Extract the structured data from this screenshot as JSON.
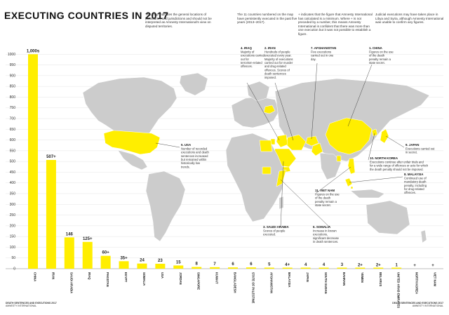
{
  "header": {
    "title": "EXECUTING COUNTRIES IN 2017",
    "note_borders": "This map indicates the general locations of boundaries and jurisdictions and should not be interpreted as Amnesty International's view on disputed territories.",
    "note_countries": "The 11 countries numbered on the map have persistently executed in the past five years (2013–2017).",
    "note_plus": "+ indicates that the figure that Amnesty International has calculated is a minimum. Where + is not preceded by a number, this means Amnesty International is confident that there was more than one execution but it was not possible to establish a figure.",
    "note_libya": "Judicial executions may have taken place in Libya and Syria, although Amnesty International was unable to confirm any figures."
  },
  "footer": {
    "left_line1": "DEATH SENTENCES AND EXECUTIONS 2017",
    "left_line2": "AMNESTY INTERNATIONAL",
    "right_line1": "DEATH SENTENCES AND EXECUTIONS 2017",
    "right_line2": "AMNESTY INTERNATIONAL"
  },
  "map_annotations": [
    {
      "id": "iraq",
      "title": "4. IRAQ",
      "text": "Majority of executions carried out for terrorism-related offences."
    },
    {
      "id": "iran",
      "title": "2. IRAN",
      "text": "Hundreds of people executed every year. Majority of executions carried out for murder and drug-related offences. Scores of death sentences imposed."
    },
    {
      "id": "afghanistan",
      "title": "7. AFGHANISTAN",
      "text": "Five executions carried out in one day."
    },
    {
      "id": "china",
      "title": "1. CHINA",
      "text": "Figures on the use of the death penalty remain a state secret."
    },
    {
      "id": "usa",
      "title": "5. USA",
      "text": "Number of recorded executions and death sentences increased but remained within historically low trends."
    },
    {
      "id": "japan",
      "title": "9. JAPAN",
      "text": "Executions carried out in secret."
    },
    {
      "id": "north_korea",
      "title": "10. NORTH KOREA",
      "text": "Executions continue after unfair trials and for a wide range of offences or acts for which the death penalty should not be imposed."
    },
    {
      "id": "malaysia",
      "title": "8. MALAYSIA",
      "text": "Continued use of mandatory death penalty, including for drug-related offences."
    },
    {
      "id": "viet_nam",
      "title": "11. VIET NAM",
      "text": "Figures on the use of the death penalty remain a state secret."
    },
    {
      "id": "saudi",
      "title": "3. SAUDI ARABIA",
      "text": "Scores of people executed."
    },
    {
      "id": "somalia",
      "title": "6. SOMALIA",
      "text": "Increase in known executions, significant decrease in death sentences."
    }
  ],
  "chart_data": {
    "type": "bar",
    "title": "EXECUTING COUNTRIES IN 2017",
    "xlabel": "",
    "ylabel": "",
    "ylim": [
      0,
      1050
    ],
    "yticks": [
      0,
      50,
      100,
      150,
      200,
      250,
      300,
      350,
      400,
      450,
      500,
      550,
      600,
      650,
      700,
      750,
      800,
      850,
      900,
      950,
      1000
    ],
    "grid": true,
    "bar_color": "#ffee00",
    "categories": [
      "CHINA",
      "IRAN",
      "SAUDI ARABIA",
      "IRAQ",
      "PAKISTAN",
      "EGYPT",
      "SOMALIA",
      "USA",
      "JORDAN",
      "SINGAPORE",
      "KUWAIT",
      "BANGLADESH",
      "STATE OF PALESTINE",
      "AFGHANISTAN",
      "MALAYSIA",
      "JAPAN",
      "SOUTH SUDAN",
      "BAHRAIN",
      "YEMEN",
      "BELARUS",
      "UNITED ARAB EMIRATES",
      "NORTH KOREA",
      "VIET NAM"
    ],
    "values": [
      1000,
      507,
      146,
      125,
      60,
      35,
      24,
      23,
      15,
      8,
      7,
      6,
      6,
      5,
      4,
      4,
      4,
      3,
      2,
      2,
      1,
      null,
      null
    ],
    "value_labels": [
      "1,000s",
      "507+",
      "146",
      "125+",
      "60+",
      "35+",
      "24",
      "23",
      "15",
      "8",
      "7",
      "6",
      "6",
      "5",
      "4+",
      "4",
      "4",
      "3",
      "2+",
      "2+",
      "1",
      "+",
      "+"
    ]
  }
}
